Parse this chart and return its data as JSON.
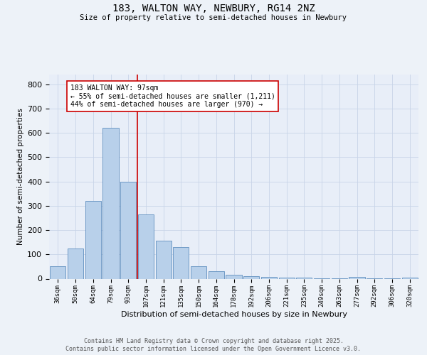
{
  "title1": "183, WALTON WAY, NEWBURY, RG14 2NZ",
  "title2": "Size of property relative to semi-detached houses in Newbury",
  "xlabel": "Distribution of semi-detached houses by size in Newbury",
  "ylabel": "Number of semi-detached properties",
  "categories": [
    "36sqm",
    "50sqm",
    "64sqm",
    "79sqm",
    "93sqm",
    "107sqm",
    "121sqm",
    "135sqm",
    "150sqm",
    "164sqm",
    "178sqm",
    "192sqm",
    "206sqm",
    "221sqm",
    "235sqm",
    "249sqm",
    "263sqm",
    "277sqm",
    "292sqm",
    "306sqm",
    "320sqm"
  ],
  "values": [
    50,
    125,
    320,
    620,
    400,
    265,
    155,
    130,
    52,
    32,
    15,
    10,
    6,
    5,
    3,
    2,
    1,
    7,
    1,
    1,
    5
  ],
  "bar_color": "#b8d0ea",
  "bar_edge_color": "#6090c0",
  "red_line_x": 4.5,
  "annotation_text1": "183 WALTON WAY: 97sqm",
  "annotation_text2": "← 55% of semi-detached houses are smaller (1,211)",
  "annotation_text3": "44% of semi-detached houses are larger (970) →",
  "annotation_box_color": "#ffffff",
  "annotation_box_edge": "#cc0000",
  "red_line_color": "#cc0000",
  "ylim": [
    0,
    840
  ],
  "yticks": [
    0,
    100,
    200,
    300,
    400,
    500,
    600,
    700,
    800
  ],
  "grid_color": "#c8d4e8",
  "background_color": "#e8eef8",
  "fig_background": "#edf2f8",
  "footer1": "Contains HM Land Registry data © Crown copyright and database right 2025.",
  "footer2": "Contains public sector information licensed under the Open Government Licence v3.0."
}
